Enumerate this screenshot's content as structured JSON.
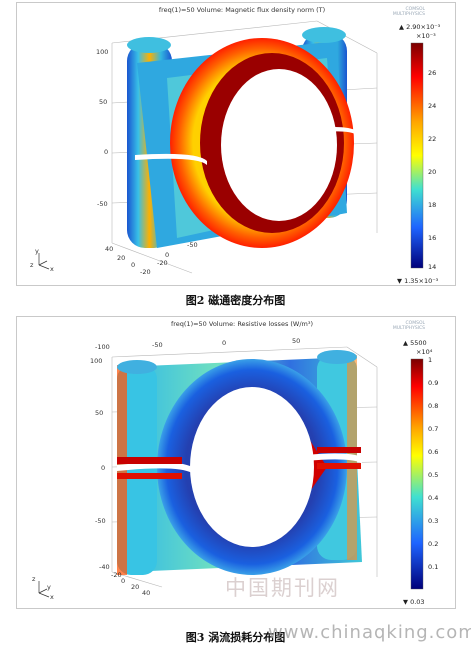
{
  "figure_top": {
    "title": "freq(1)=50   Volume: Magnetic flux density norm (T)",
    "caption": "图2   磁通密度分布图",
    "colorbar": {
      "max_label": "▲ 2.90×10⁻³",
      "exponent": "×10⁻³",
      "ticks": [
        "26",
        "24",
        "22",
        "20",
        "18",
        "16",
        "14"
      ],
      "min_label": "▼ 1.35×10⁻³"
    },
    "axis_z_ticks": [
      "100",
      "50",
      "0",
      "-50"
    ],
    "axis_x_ticks": [
      "40",
      "20",
      "0",
      "-20"
    ],
    "axis_y_ticks": [
      "-20",
      "0",
      "-50"
    ],
    "triad": [
      "y",
      "z",
      "x"
    ]
  },
  "figure_bottom": {
    "title": "freq(1)=50   Volume: Resistive losses (W/m³)",
    "caption": "图3   涡流损耗分布图",
    "colorbar": {
      "max_label": "▲ 5500",
      "exponent": "×10⁴",
      "ticks": [
        "1",
        "0.9",
        "0.8",
        "0.7",
        "0.6",
        "0.5",
        "0.4",
        "0.3",
        "0.2",
        "0.1"
      ],
      "min_label": "▼ 0.03"
    },
    "axis_z_ticks": [
      "100",
      "50",
      "0",
      "-50"
    ],
    "axis_x_ticks": [
      "-40",
      "-20",
      "0",
      "20",
      "40"
    ],
    "axis_y_ticks": [
      "-100",
      "-50",
      "0",
      "50"
    ],
    "triad": [
      "z",
      "y",
      "x"
    ]
  },
  "watermark": {
    "site_cn": "中国期刊网",
    "site_url": "www.chinaqking.com"
  },
  "colors": {
    "colorbar_high": "#8b0000",
    "colorbar_mid": "#ffff00",
    "colorbar_low": "#00008b"
  }
}
